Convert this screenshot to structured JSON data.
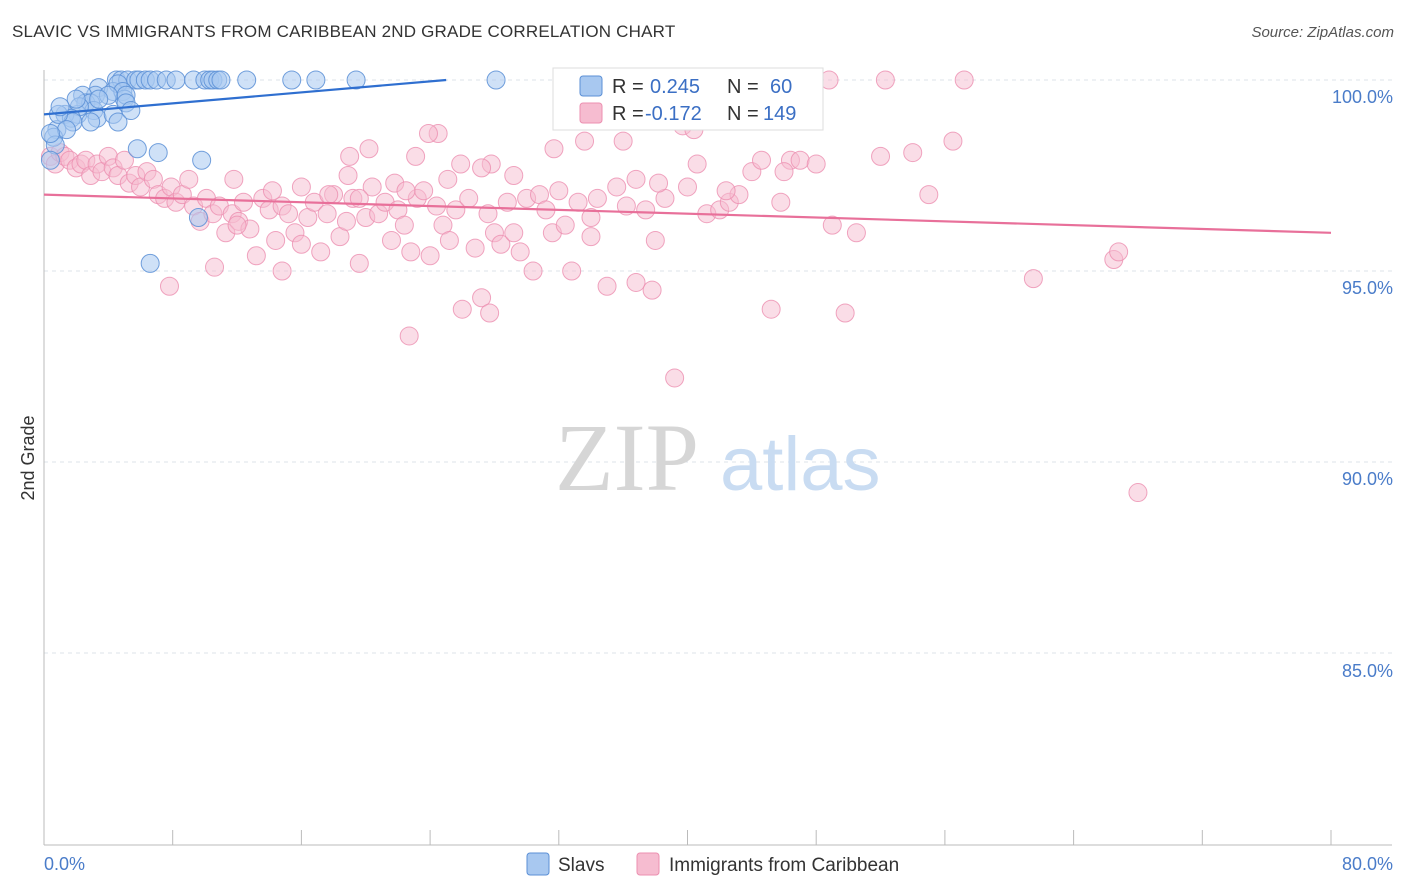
{
  "header": {
    "title": "SLAVIC VS IMMIGRANTS FROM CARIBBEAN 2ND GRADE CORRELATION CHART",
    "source": "Source: ZipAtlas.com"
  },
  "watermark": {
    "zip": "ZIP",
    "atlas": "atlas"
  },
  "legend": {
    "rows": [
      {
        "r_label": "R =",
        "r_value": "0.245",
        "n_label": "N =",
        "n_value": "60"
      },
      {
        "r_label": "R =",
        "r_value": "-0.172",
        "n_label": "N =",
        "n_value": "149"
      }
    ]
  },
  "bottom_legend": {
    "series1": "Slavs",
    "series2": "Immigrants from Caribbean"
  },
  "colors": {
    "slavs_fill": "#a8c8f0",
    "slavs_stroke": "#5b8fd6",
    "slavs_line": "#2f6fd0",
    "carib_fill": "#f6bcd0",
    "carib_stroke": "#ec8fb0",
    "carib_line": "#e8709a",
    "tick_color": "#4a7cc9",
    "grid": "#dde3ea"
  },
  "chart_data": {
    "type": "scatter",
    "title": "SLAVIC VS IMMIGRANTS FROM CARIBBEAN 2ND GRADE CORRELATION CHART",
    "xlabel": "",
    "ylabel": "2nd Grade",
    "xlim": [
      0,
      80
    ],
    "ylim": [
      80.2,
      100.8
    ],
    "x_tick_labels": [
      "0.0%",
      "80.0%"
    ],
    "y_ticks": [
      85,
      90,
      95,
      100
    ],
    "y_tick_labels": [
      "85.0%",
      "90.0%",
      "95.0%",
      "100.0%"
    ],
    "grid": true,
    "legend_position": "top-center",
    "series": [
      {
        "name": "Slavs",
        "trend": {
          "x": [
            0,
            25
          ],
          "y": [
            99.1,
            100.0
          ]
        },
        "points": [
          [
            4.5,
            100
          ],
          [
            4.8,
            100
          ],
          [
            5.2,
            100
          ],
          [
            5.7,
            100
          ],
          [
            5.9,
            100
          ],
          [
            6.3,
            100
          ],
          [
            6.6,
            100
          ],
          [
            7.0,
            100
          ],
          [
            7.6,
            100
          ],
          [
            8.2,
            100
          ],
          [
            9.3,
            100
          ],
          [
            10.0,
            100
          ],
          [
            10.3,
            100
          ],
          [
            10.5,
            100
          ],
          [
            10.8,
            100
          ],
          [
            11.0,
            100
          ],
          [
            12.6,
            100
          ],
          [
            15.4,
            100
          ],
          [
            16.9,
            100
          ],
          [
            19.4,
            100
          ],
          [
            28.1,
            100
          ],
          [
            32.5,
            100
          ],
          [
            3.4,
            99.8
          ],
          [
            3.2,
            99.6
          ],
          [
            4.3,
            99.7
          ],
          [
            4.6,
            99.9
          ],
          [
            4.9,
            99.7
          ],
          [
            5.0,
            99.5
          ],
          [
            5.1,
            99.6
          ],
          [
            4.0,
            99.6
          ],
          [
            2.4,
            99.6
          ],
          [
            2.6,
            99.4
          ],
          [
            2.9,
            99.4
          ],
          [
            3.1,
            99.2
          ],
          [
            3.3,
            99.0
          ],
          [
            2.1,
            99.1
          ],
          [
            2.2,
            99.3
          ],
          [
            1.3,
            99.1
          ],
          [
            1.7,
            99.0
          ],
          [
            1.8,
            98.9
          ],
          [
            0.8,
            98.7
          ],
          [
            0.9,
            99.1
          ],
          [
            0.6,
            98.5
          ],
          [
            0.7,
            98.3
          ],
          [
            1.4,
            98.7
          ],
          [
            4.3,
            99.1
          ],
          [
            4.6,
            98.9
          ],
          [
            5.1,
            99.4
          ],
          [
            5.4,
            99.2
          ],
          [
            2.9,
            98.9
          ],
          [
            3.4,
            99.5
          ],
          [
            2.0,
            99.5
          ],
          [
            1.0,
            99.3
          ],
          [
            5.8,
            98.2
          ],
          [
            7.1,
            98.1
          ],
          [
            9.8,
            97.9
          ],
          [
            9.6,
            96.4
          ],
          [
            6.6,
            95.2
          ],
          [
            0.4,
            98.6
          ],
          [
            0.4,
            97.9
          ]
        ]
      },
      {
        "name": "Immigrants from Caribbean",
        "trend": {
          "x": [
            0,
            80
          ],
          "y": [
            97.0,
            96.0
          ]
        },
        "points": [
          [
            0.4,
            98.0
          ],
          [
            0.7,
            97.8
          ],
          [
            1.0,
            98.1
          ],
          [
            1.3,
            98.0
          ],
          [
            1.6,
            97.9
          ],
          [
            2.0,
            97.7
          ],
          [
            2.3,
            97.8
          ],
          [
            2.6,
            97.9
          ],
          [
            2.9,
            97.5
          ],
          [
            3.3,
            97.8
          ],
          [
            3.6,
            97.6
          ],
          [
            4.0,
            98.0
          ],
          [
            4.3,
            97.7
          ],
          [
            4.6,
            97.5
          ],
          [
            5.0,
            97.9
          ],
          [
            5.3,
            97.3
          ],
          [
            5.7,
            97.5
          ],
          [
            6.0,
            97.2
          ],
          [
            6.4,
            97.6
          ],
          [
            6.8,
            97.4
          ],
          [
            7.1,
            97.0
          ],
          [
            7.5,
            96.9
          ],
          [
            7.9,
            97.2
          ],
          [
            8.2,
            96.8
          ],
          [
            8.6,
            97.0
          ],
          [
            9.0,
            97.4
          ],
          [
            9.3,
            96.7
          ],
          [
            9.7,
            96.3
          ],
          [
            10.1,
            96.9
          ],
          [
            10.5,
            96.5
          ],
          [
            10.9,
            96.7
          ],
          [
            11.3,
            96.0
          ],
          [
            11.7,
            96.5
          ],
          [
            12.1,
            96.3
          ],
          [
            12.4,
            96.8
          ],
          [
            12.8,
            96.1
          ],
          [
            13.2,
            95.4
          ],
          [
            13.6,
            96.9
          ],
          [
            14.0,
            96.6
          ],
          [
            14.4,
            95.8
          ],
          [
            14.8,
            96.7
          ],
          [
            15.2,
            96.5
          ],
          [
            15.6,
            96.0
          ],
          [
            16.0,
            95.7
          ],
          [
            16.4,
            96.4
          ],
          [
            16.8,
            96.8
          ],
          [
            17.2,
            95.5
          ],
          [
            17.6,
            96.5
          ],
          [
            18.0,
            97.0
          ],
          [
            18.4,
            95.9
          ],
          [
            18.8,
            96.3
          ],
          [
            19.2,
            96.9
          ],
          [
            19.6,
            95.2
          ],
          [
            20.0,
            96.4
          ],
          [
            20.4,
            97.2
          ],
          [
            20.8,
            96.5
          ],
          [
            21.2,
            96.8
          ],
          [
            21.6,
            95.8
          ],
          [
            22.0,
            96.6
          ],
          [
            22.4,
            96.2
          ],
          [
            22.8,
            95.5
          ],
          [
            23.2,
            96.9
          ],
          [
            23.6,
            97.1
          ],
          [
            24.0,
            95.4
          ],
          [
            24.4,
            96.7
          ],
          [
            24.8,
            96.2
          ],
          [
            25.2,
            95.8
          ],
          [
            25.6,
            96.6
          ],
          [
            26.0,
            94.0
          ],
          [
            26.4,
            96.9
          ],
          [
            26.8,
            95.6
          ],
          [
            27.2,
            94.3
          ],
          [
            27.6,
            96.5
          ],
          [
            28.0,
            96.0
          ],
          [
            28.4,
            95.7
          ],
          [
            28.8,
            96.8
          ],
          [
            29.2,
            96.0
          ],
          [
            29.6,
            95.5
          ],
          [
            30.0,
            96.9
          ],
          [
            30.4,
            95.0
          ],
          [
            30.8,
            97.0
          ],
          [
            31.2,
            96.6
          ],
          [
            31.6,
            96.0
          ],
          [
            32.0,
            97.1
          ],
          [
            32.4,
            96.2
          ],
          [
            32.8,
            95.0
          ],
          [
            33.2,
            96.8
          ],
          [
            34.0,
            96.4
          ],
          [
            34.4,
            96.9
          ],
          [
            35.0,
            94.6
          ],
          [
            35.6,
            97.2
          ],
          [
            36.2,
            96.7
          ],
          [
            36.8,
            94.7
          ],
          [
            37.4,
            96.6
          ],
          [
            38.0,
            95.8
          ],
          [
            38.6,
            96.9
          ],
          [
            39.2,
            92.2
          ],
          [
            40.0,
            97.2
          ],
          [
            40.6,
            97.8
          ],
          [
            41.2,
            96.5
          ],
          [
            42.0,
            96.6
          ],
          [
            42.6,
            96.8
          ],
          [
            43.2,
            97.0
          ],
          [
            44.0,
            97.6
          ],
          [
            44.6,
            97.9
          ],
          [
            45.2,
            94.0
          ],
          [
            45.8,
            96.8
          ],
          [
            46.4,
            97.9
          ],
          [
            47.0,
            97.9
          ],
          [
            48.0,
            97.8
          ],
          [
            49.0,
            96.2
          ],
          [
            50.5,
            96.0
          ],
          [
            52.0,
            98.0
          ],
          [
            54.0,
            98.1
          ],
          [
            55.0,
            97.0
          ],
          [
            56.5,
            98.4
          ],
          [
            61.5,
            94.8
          ],
          [
            66.5,
            95.3
          ],
          [
            66.8,
            95.5
          ],
          [
            68.0,
            89.2
          ],
          [
            52.3,
            100
          ],
          [
            57.2,
            100
          ],
          [
            48.8,
            100
          ],
          [
            24.5,
            98.6
          ],
          [
            23.9,
            98.6
          ],
          [
            27.8,
            97.8
          ],
          [
            27.2,
            97.7
          ],
          [
            33.6,
            98.4
          ],
          [
            36.0,
            98.4
          ],
          [
            39.7,
            98.8
          ],
          [
            40.4,
            98.7
          ],
          [
            19.0,
            98.0
          ],
          [
            20.2,
            98.2
          ],
          [
            23.1,
            98.0
          ],
          [
            25.9,
            97.8
          ],
          [
            29.2,
            97.5
          ],
          [
            31.7,
            98.2
          ],
          [
            36.8,
            97.4
          ],
          [
            38.2,
            97.3
          ],
          [
            42.4,
            97.1
          ],
          [
            46.0,
            97.6
          ],
          [
            11.8,
            97.4
          ],
          [
            14.2,
            97.1
          ],
          [
            16.0,
            97.2
          ],
          [
            17.7,
            97.0
          ],
          [
            18.9,
            97.5
          ],
          [
            21.8,
            97.3
          ],
          [
            22.5,
            97.1
          ],
          [
            25.1,
            97.4
          ],
          [
            7.8,
            94.6
          ],
          [
            10.6,
            95.1
          ],
          [
            14.8,
            95.0
          ],
          [
            22.7,
            93.3
          ],
          [
            27.7,
            93.9
          ],
          [
            37.8,
            94.5
          ],
          [
            49.8,
            93.9
          ],
          [
            12.0,
            96.2
          ],
          [
            19.6,
            96.9
          ],
          [
            34.0,
            95.9
          ]
        ]
      }
    ]
  }
}
